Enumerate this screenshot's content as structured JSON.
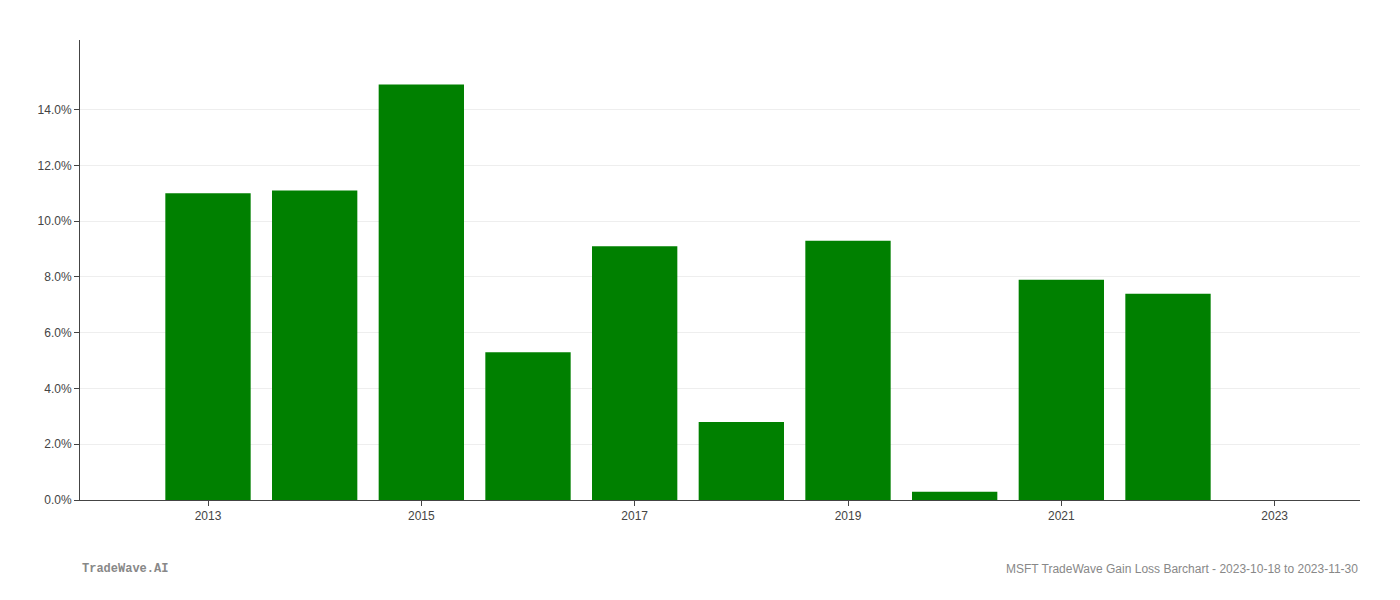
{
  "chart_data": {
    "type": "bar",
    "x": [
      2013,
      2014,
      2015,
      2016,
      2017,
      2018,
      2019,
      2020,
      2021,
      2022
    ],
    "values": [
      0.11,
      0.111,
      0.149,
      0.053,
      0.091,
      0.028,
      0.093,
      0.003,
      0.079,
      0.074
    ],
    "color": "#008000",
    "xlim": [
      2011.8,
      2023.8
    ],
    "xticks": [
      2013,
      2015,
      2017,
      2019,
      2021,
      2023
    ],
    "ylim": [
      0,
      0.165
    ],
    "yticks": [
      {
        "value": 0.0,
        "label": "0.0%"
      },
      {
        "value": 0.02,
        "label": "2.0%"
      },
      {
        "value": 0.04,
        "label": "4.0%"
      },
      {
        "value": 0.06,
        "label": "6.0%"
      },
      {
        "value": 0.08,
        "label": "8.0%"
      },
      {
        "value": 0.1,
        "label": "10.0%"
      },
      {
        "value": 0.12,
        "label": "12.0%"
      },
      {
        "value": 0.14,
        "label": "14.0%"
      }
    ],
    "grid": true,
    "annotations": [
      "TradeWave.AI",
      "MSFT TradeWave Gain Loss Barchart - 2023-10-18 to 2023-11-30"
    ]
  }
}
